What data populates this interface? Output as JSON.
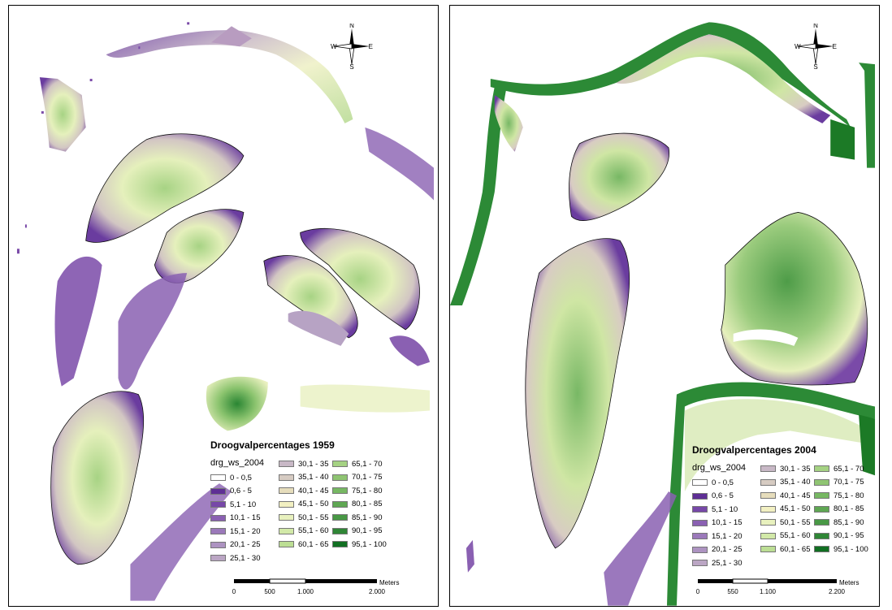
{
  "legend_field": "drg_ws_2004",
  "legend_classes": [
    {
      "label": "0 - 0,5",
      "color": "#ffffff"
    },
    {
      "label": "0,6 - 5",
      "color": "#5e2f95"
    },
    {
      "label": "5,1 - 10",
      "color": "#7748a8"
    },
    {
      "label": "10,1 - 15",
      "color": "#8a60b2"
    },
    {
      "label": "15,1 - 20",
      "color": "#9b79ba"
    },
    {
      "label": "20,1 - 25",
      "color": "#ad93c1"
    },
    {
      "label": "25,1 - 30",
      "color": "#bba6c4"
    },
    {
      "label": "30,1 - 35",
      "color": "#c8b8c6"
    },
    {
      "label": "35,1 - 40",
      "color": "#d6cbc2"
    },
    {
      "label": "40,1 - 45",
      "color": "#e6ddbc"
    },
    {
      "label": "45,1 - 50",
      "color": "#f2f0c2"
    },
    {
      "label": "50,1 - 55",
      "color": "#e8f1be"
    },
    {
      "label": "55,1 - 60",
      "color": "#d2e9a8"
    },
    {
      "label": "60,1 - 65",
      "color": "#bcde94"
    },
    {
      "label": "65,1 - 70",
      "color": "#a5d283"
    },
    {
      "label": "70,1 - 75",
      "color": "#8fc472"
    },
    {
      "label": "75,1 - 80",
      "color": "#77b863"
    },
    {
      "label": "80,1 - 85",
      "color": "#5fa753"
    },
    {
      "label": "85,1 - 90",
      "color": "#489845"
    },
    {
      "label": "90,1 - 95",
      "color": "#2f8636"
    },
    {
      "label": "95,1 - 100",
      "color": "#116f22"
    }
  ],
  "compass": {
    "n": "N",
    "s": "S",
    "e": "E",
    "w": "W"
  },
  "scale_unit": "Meters",
  "maps": {
    "left": {
      "title": "Droogvalpercentages 1959",
      "scale_labels": [
        "0",
        "500",
        "1.000",
        "2.000"
      ]
    },
    "right": {
      "title": "Droogvalpercentages 2004",
      "scale_labels": [
        "0",
        "550",
        "1.100",
        "2.200"
      ]
    }
  }
}
